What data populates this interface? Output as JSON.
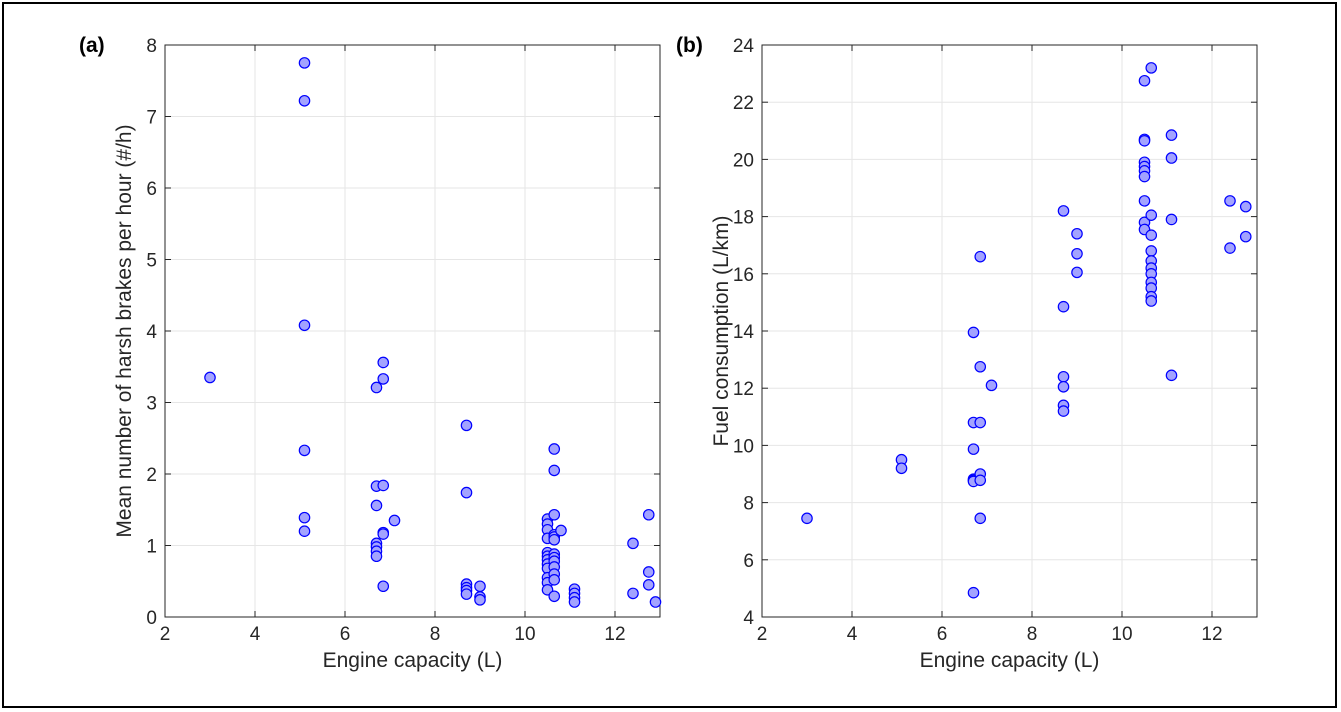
{
  "chart_data": [
    {
      "type": "scatter",
      "panel_label": "(a)",
      "title": "",
      "xlabel": "Engine capacity (L)",
      "ylabel": "Mean number of harsh brakes per hour (#/h)",
      "xlim": [
        2,
        13
      ],
      "ylim": [
        0,
        8
      ],
      "xticks": [
        2,
        4,
        6,
        8,
        10,
        12
      ],
      "yticks": [
        0,
        1,
        2,
        3,
        4,
        5,
        6,
        7,
        8
      ],
      "grid": true,
      "marker_fill": "#a3a3ff",
      "marker_edge": "#0000ff",
      "points": [
        [
          3.0,
          3.35
        ],
        [
          5.1,
          7.75
        ],
        [
          5.1,
          7.22
        ],
        [
          5.1,
          4.08
        ],
        [
          5.1,
          2.33
        ],
        [
          5.1,
          1.39
        ],
        [
          5.1,
          1.2
        ],
        [
          6.7,
          3.21
        ],
        [
          6.7,
          1.83
        ],
        [
          6.7,
          1.56
        ],
        [
          6.7,
          1.03
        ],
        [
          6.7,
          0.98
        ],
        [
          6.7,
          0.92
        ],
        [
          6.7,
          0.85
        ],
        [
          6.85,
          3.56
        ],
        [
          6.85,
          3.33
        ],
        [
          6.85,
          1.84
        ],
        [
          6.85,
          1.18
        ],
        [
          6.85,
          1.16
        ],
        [
          6.85,
          0.43
        ],
        [
          7.1,
          1.35
        ],
        [
          8.7,
          2.68
        ],
        [
          8.7,
          1.74
        ],
        [
          8.7,
          0.46
        ],
        [
          8.7,
          0.41
        ],
        [
          8.7,
          0.37
        ],
        [
          8.7,
          0.32
        ],
        [
          9.0,
          0.43
        ],
        [
          9.0,
          0.28
        ],
        [
          9.0,
          0.24
        ],
        [
          10.5,
          1.37
        ],
        [
          10.5,
          1.3
        ],
        [
          10.5,
          1.22
        ],
        [
          10.5,
          1.1
        ],
        [
          10.5,
          0.9
        ],
        [
          10.5,
          0.85
        ],
        [
          10.5,
          0.8
        ],
        [
          10.5,
          0.74
        ],
        [
          10.5,
          0.68
        ],
        [
          10.5,
          0.55
        ],
        [
          10.5,
          0.48
        ],
        [
          10.5,
          0.38
        ],
        [
          10.65,
          2.35
        ],
        [
          10.65,
          2.05
        ],
        [
          10.65,
          1.43
        ],
        [
          10.65,
          1.15
        ],
        [
          10.65,
          1.12
        ],
        [
          10.65,
          1.08
        ],
        [
          10.65,
          0.88
        ],
        [
          10.65,
          0.83
        ],
        [
          10.65,
          0.78
        ],
        [
          10.65,
          0.7
        ],
        [
          10.65,
          0.6
        ],
        [
          10.65,
          0.52
        ],
        [
          10.65,
          0.29
        ],
        [
          10.8,
          1.21
        ],
        [
          11.1,
          0.39
        ],
        [
          11.1,
          0.33
        ],
        [
          11.1,
          0.27
        ],
        [
          11.1,
          0.21
        ],
        [
          12.4,
          1.03
        ],
        [
          12.4,
          0.33
        ],
        [
          12.75,
          1.43
        ],
        [
          12.75,
          0.63
        ],
        [
          12.75,
          0.45
        ],
        [
          12.9,
          0.21
        ]
      ]
    },
    {
      "type": "scatter",
      "panel_label": "(b)",
      "title": "",
      "xlabel": "Engine capacity (L)",
      "ylabel": "Fuel consumption (L/km)",
      "xlim": [
        2,
        13
      ],
      "ylim": [
        4,
        24
      ],
      "xticks": [
        2,
        4,
        6,
        8,
        10,
        12
      ],
      "yticks": [
        4,
        6,
        8,
        10,
        12,
        14,
        16,
        18,
        20,
        22,
        24
      ],
      "grid": true,
      "marker_fill": "#a3a3ff",
      "marker_edge": "#0000ff",
      "points": [
        [
          3.0,
          7.45
        ],
        [
          5.1,
          9.5
        ],
        [
          5.1,
          9.2
        ],
        [
          6.7,
          13.95
        ],
        [
          6.7,
          10.8
        ],
        [
          6.7,
          9.87
        ],
        [
          6.7,
          8.82
        ],
        [
          6.7,
          8.78
        ],
        [
          6.7,
          8.74
        ],
        [
          6.7,
          4.85
        ],
        [
          6.85,
          16.6
        ],
        [
          6.85,
          12.75
        ],
        [
          6.85,
          10.8
        ],
        [
          6.85,
          9.0
        ],
        [
          6.85,
          8.78
        ],
        [
          6.85,
          7.45
        ],
        [
          7.1,
          12.1
        ],
        [
          8.7,
          18.2
        ],
        [
          8.7,
          14.85
        ],
        [
          8.7,
          12.4
        ],
        [
          8.7,
          12.05
        ],
        [
          8.7,
          11.4
        ],
        [
          8.7,
          11.2
        ],
        [
          9.0,
          17.4
        ],
        [
          9.0,
          16.7
        ],
        [
          9.0,
          16.05
        ],
        [
          10.5,
          22.75
        ],
        [
          10.5,
          20.7
        ],
        [
          10.5,
          20.65
        ],
        [
          10.5,
          19.9
        ],
        [
          10.5,
          19.75
        ],
        [
          10.5,
          19.6
        ],
        [
          10.5,
          19.4
        ],
        [
          10.5,
          18.55
        ],
        [
          10.5,
          17.8
        ],
        [
          10.5,
          17.55
        ],
        [
          10.65,
          23.2
        ],
        [
          10.65,
          18.05
        ],
        [
          10.65,
          17.35
        ],
        [
          10.65,
          16.8
        ],
        [
          10.65,
          16.45
        ],
        [
          10.65,
          16.2
        ],
        [
          10.65,
          16.0
        ],
        [
          10.65,
          15.7
        ],
        [
          10.65,
          15.5
        ],
        [
          10.65,
          15.2
        ],
        [
          10.65,
          15.05
        ],
        [
          11.1,
          20.85
        ],
        [
          11.1,
          20.05
        ],
        [
          11.1,
          17.9
        ],
        [
          11.1,
          12.45
        ],
        [
          12.4,
          18.55
        ],
        [
          12.4,
          16.9
        ],
        [
          12.75,
          18.35
        ],
        [
          12.75,
          17.3
        ]
      ]
    }
  ]
}
